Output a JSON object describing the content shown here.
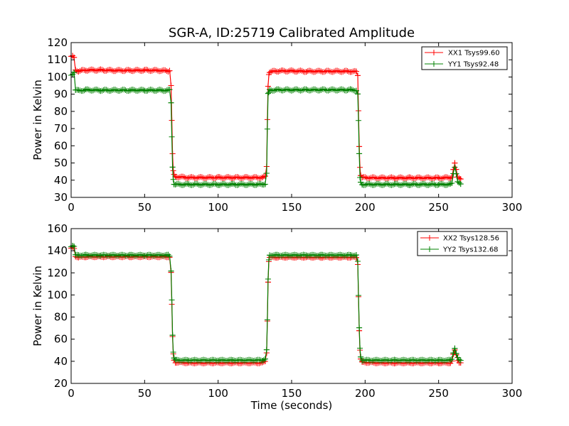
{
  "chart_data": [
    {
      "type": "line",
      "title": "SGR-A, ID:25719 Calibrated Amplitude",
      "xlabel": "",
      "ylabel": "Power in Kelvin",
      "xlim": [
        0,
        300
      ],
      "ylim": [
        30,
        120
      ],
      "x_ticks": [
        0,
        50,
        100,
        150,
        200,
        250,
        300
      ],
      "y_ticks": [
        30,
        40,
        50,
        60,
        70,
        80,
        90,
        100,
        110,
        120
      ],
      "grid": false,
      "legend_position": "top-right",
      "marker": "+",
      "series": [
        {
          "name": "XX1 Tsys99.60",
          "color": "#ff0000",
          "points": [
            [
              0,
              112
            ],
            [
              1,
              112
            ],
            [
              2,
              111
            ],
            [
              3,
              104
            ],
            [
              5,
              103.5
            ],
            [
              10,
              104
            ],
            [
              20,
              104
            ],
            [
              30,
              103.8
            ],
            [
              40,
              103.8
            ],
            [
              50,
              103.9
            ],
            [
              60,
              103.8
            ],
            [
              66,
              103.5
            ],
            [
              67,
              104
            ],
            [
              68,
              95
            ],
            [
              68.5,
              75
            ],
            [
              69,
              55
            ],
            [
              69.5,
              46
            ],
            [
              70,
              43
            ],
            [
              71,
              42
            ],
            [
              80,
              41.5
            ],
            [
              90,
              41.5
            ],
            [
              100,
              41.5
            ],
            [
              110,
              41.5
            ],
            [
              120,
              41.5
            ],
            [
              130,
              41.5
            ],
            [
              132,
              42
            ],
            [
              133,
              48
            ],
            [
              133.5,
              75
            ],
            [
              134,
              95
            ],
            [
              134.5,
              101
            ],
            [
              135,
              103
            ],
            [
              140,
              103.5
            ],
            [
              150,
              103.5
            ],
            [
              160,
              103.3
            ],
            [
              170,
              103.3
            ],
            [
              180,
              103.3
            ],
            [
              190,
              103.3
            ],
            [
              194,
              103
            ],
            [
              195,
              101
            ],
            [
              195.5,
              80
            ],
            [
              196,
              60
            ],
            [
              196.5,
              47
            ],
            [
              197,
              43
            ],
            [
              198,
              41.5
            ],
            [
              210,
              41.3
            ],
            [
              220,
              41.3
            ],
            [
              230,
              41.3
            ],
            [
              240,
              41.3
            ],
            [
              250,
              41.3
            ],
            [
              258,
              41.5
            ],
            [
              259,
              42
            ],
            [
              260,
              46
            ],
            [
              261,
              49.5
            ],
            [
              262,
              46
            ],
            [
              263,
              42
            ],
            [
              264,
              41.5
            ],
            [
              265,
              41
            ]
          ]
        },
        {
          "name": "YY1 Tsys92.48",
          "color": "#008000",
          "points": [
            [
              0,
              101
            ],
            [
              1,
              102
            ],
            [
              2,
              103
            ],
            [
              3,
              92.5
            ],
            [
              5,
              92
            ],
            [
              10,
              92.5
            ],
            [
              20,
              92.3
            ],
            [
              30,
              92.3
            ],
            [
              40,
              92.3
            ],
            [
              50,
              92.3
            ],
            [
              60,
              92.3
            ],
            [
              66,
              92.2
            ],
            [
              67,
              92.3
            ],
            [
              68,
              85
            ],
            [
              68.5,
              65
            ],
            [
              69,
              48
            ],
            [
              69.5,
              40
            ],
            [
              70,
              38
            ],
            [
              71,
              37.5
            ],
            [
              80,
              37.5
            ],
            [
              90,
              37.5
            ],
            [
              100,
              37.5
            ],
            [
              110,
              37.5
            ],
            [
              120,
              37.5
            ],
            [
              130,
              37.5
            ],
            [
              132,
              38
            ],
            [
              133,
              44
            ],
            [
              133.5,
              70
            ],
            [
              134,
              90
            ],
            [
              134.5,
              91.5
            ],
            [
              135,
              92.3
            ],
            [
              140,
              92.5
            ],
            [
              150,
              92.5
            ],
            [
              160,
              92.5
            ],
            [
              170,
              92.5
            ],
            [
              180,
              92.5
            ],
            [
              190,
              92.5
            ],
            [
              194,
              92.3
            ],
            [
              195,
              90
            ],
            [
              195.5,
              75
            ],
            [
              196,
              55
            ],
            [
              196.5,
              42
            ],
            [
              197,
              38.5
            ],
            [
              198,
              37.5
            ],
            [
              210,
              37.5
            ],
            [
              220,
              37.5
            ],
            [
              230,
              37.5
            ],
            [
              240,
              37.5
            ],
            [
              250,
              37.5
            ],
            [
              258,
              37.5
            ],
            [
              259,
              38
            ],
            [
              260,
              44
            ],
            [
              261,
              48
            ],
            [
              262,
              44
            ],
            [
              263,
              39
            ],
            [
              264,
              38
            ],
            [
              265,
              37.5
            ]
          ]
        }
      ]
    },
    {
      "type": "line",
      "title": "",
      "xlabel": "Time (seconds)",
      "ylabel": "Power in Kelvin",
      "xlim": [
        0,
        300
      ],
      "ylim": [
        20,
        160
      ],
      "x_ticks": [
        0,
        50,
        100,
        150,
        200,
        250,
        300
      ],
      "y_ticks": [
        20,
        40,
        60,
        80,
        100,
        120,
        140,
        160
      ],
      "grid": false,
      "legend_position": "top-right",
      "marker": "+",
      "series": [
        {
          "name": "XX2 Tsys128.56",
          "color": "#ff0000",
          "points": [
            [
              0,
              142
            ],
            [
              1,
              143
            ],
            [
              2,
              142
            ],
            [
              3,
              135
            ],
            [
              5,
              134
            ],
            [
              10,
              134.5
            ],
            [
              20,
              134.5
            ],
            [
              30,
              134.5
            ],
            [
              40,
              134.5
            ],
            [
              50,
              134.5
            ],
            [
              60,
              134.5
            ],
            [
              66,
              134.5
            ],
            [
              67,
              134
            ],
            [
              68,
              120
            ],
            [
              68.5,
              92
            ],
            [
              69,
              62
            ],
            [
              69.5,
              47
            ],
            [
              70,
              41
            ],
            [
              71,
              39
            ],
            [
              80,
              38.5
            ],
            [
              90,
              38.5
            ],
            [
              100,
              38.5
            ],
            [
              110,
              38.5
            ],
            [
              120,
              38.5
            ],
            [
              130,
              38.5
            ],
            [
              132,
              40
            ],
            [
              133,
              48
            ],
            [
              133.5,
              76
            ],
            [
              134,
              112
            ],
            [
              134.5,
              130
            ],
            [
              135,
              134
            ],
            [
              140,
              134
            ],
            [
              150,
              134
            ],
            [
              160,
              134
            ],
            [
              170,
              134
            ],
            [
              180,
              134
            ],
            [
              190,
              134
            ],
            [
              194,
              134
            ],
            [
              195,
              128
            ],
            [
              195.5,
              98
            ],
            [
              196,
              68
            ],
            [
              196.5,
              50
            ],
            [
              197,
              42
            ],
            [
              198,
              39
            ],
            [
              210,
              38.5
            ],
            [
              220,
              38.5
            ],
            [
              230,
              38.5
            ],
            [
              240,
              38.5
            ],
            [
              250,
              38.5
            ],
            [
              258,
              38.5
            ],
            [
              259,
              40
            ],
            [
              260,
              46
            ],
            [
              261,
              50
            ],
            [
              262,
              46
            ],
            [
              263,
              41
            ],
            [
              264,
              39
            ],
            [
              265,
              38.5
            ]
          ]
        },
        {
          "name": "YY2 Tsys132.68",
          "color": "#008000",
          "points": [
            [
              0,
              144
            ],
            [
              1,
              145
            ],
            [
              2,
              144
            ],
            [
              3,
              136
            ],
            [
              5,
              136
            ],
            [
              10,
              136
            ],
            [
              20,
              136
            ],
            [
              30,
              136
            ],
            [
              40,
              136
            ],
            [
              50,
              136
            ],
            [
              60,
              136
            ],
            [
              66,
              136
            ],
            [
              67,
              135
            ],
            [
              68,
              122
            ],
            [
              68.5,
              95
            ],
            [
              69,
              64
            ],
            [
              69.5,
              48
            ],
            [
              70,
              43
            ],
            [
              71,
              41
            ],
            [
              80,
              41
            ],
            [
              90,
              41
            ],
            [
              100,
              41
            ],
            [
              110,
              41
            ],
            [
              120,
              41
            ],
            [
              130,
              41
            ],
            [
              132,
              42
            ],
            [
              133,
              50
            ],
            [
              133.5,
              78
            ],
            [
              134,
              114
            ],
            [
              134.5,
              132
            ],
            [
              135,
              136
            ],
            [
              140,
              136
            ],
            [
              150,
              136
            ],
            [
              160,
              136
            ],
            [
              170,
              136
            ],
            [
              180,
              136
            ],
            [
              190,
              136
            ],
            [
              194,
              136
            ],
            [
              195,
              130
            ],
            [
              195.5,
              100
            ],
            [
              196,
              70
            ],
            [
              196.5,
              52
            ],
            [
              197,
              44
            ],
            [
              198,
              41
            ],
            [
              210,
              41
            ],
            [
              220,
              41
            ],
            [
              230,
              41
            ],
            [
              240,
              41
            ],
            [
              250,
              41
            ],
            [
              258,
              41
            ],
            [
              259,
              42
            ],
            [
              260,
              48
            ],
            [
              261,
              52
            ],
            [
              262,
              47
            ],
            [
              263,
              43
            ],
            [
              264,
              41
            ],
            [
              265,
              41
            ]
          ]
        }
      ]
    }
  ]
}
